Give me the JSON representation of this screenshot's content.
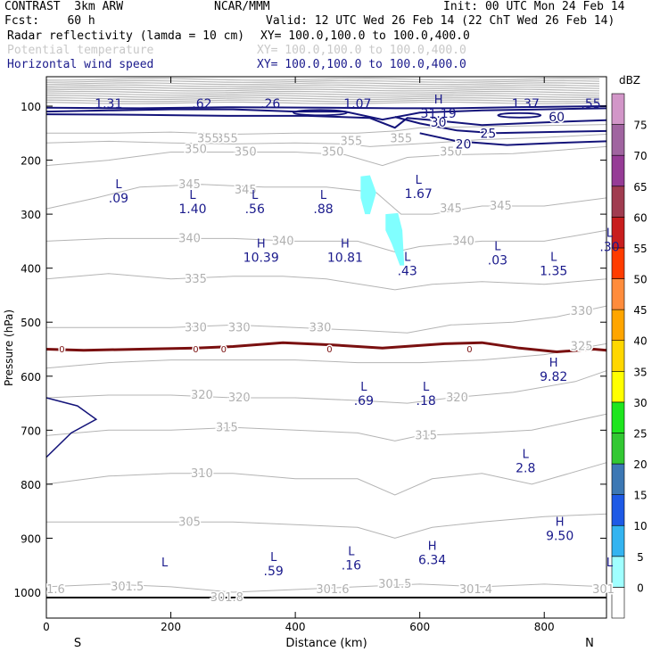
{
  "header": {
    "model": "CONTRAST  3km ARW",
    "org": "NCAR/MMM",
    "init": "Init: 00 UTC Mon 24 Feb 14",
    "fcst": "Fcst:    60 h",
    "valid": "Valid: 12 UTC Wed 26 Feb 14 (22 ChT Wed 26 Feb 14)",
    "fields": [
      {
        "name": "Radar reflectivity (lamda = 10 cm)",
        "xy": "XY= 100.0,100.0 to 100.0,400.0",
        "color": "#000000"
      },
      {
        "name": "Potential temperature",
        "xy": "XY= 100.0,100.0 to 100.0,400.0",
        "color": "#c8c8c8"
      },
      {
        "name": "Horizontal wind speed",
        "xy": "XY= 100.0,100.0 to 100.0,400.0",
        "color": "#1a1a8c"
      }
    ]
  },
  "chart_data": {
    "type": "contour",
    "xlabel": "Distance (km)",
    "ylabel": "Pressure (hPa)",
    "xlim": [
      0,
      900
    ],
    "ylim": [
      1050,
      50
    ],
    "x_ticks": [
      "0",
      "200",
      "400",
      "600",
      "800"
    ],
    "y_ticks": [
      "100",
      "200",
      "300",
      "400",
      "500",
      "600",
      "700",
      "800",
      "900",
      "1000"
    ],
    "x_end_labels": {
      "left": "S",
      "right": "N"
    },
    "colorbar": {
      "unit": "dBZ",
      "levels": [
        "0",
        "5",
        "10",
        "15",
        "20",
        "25",
        "30",
        "35",
        "40",
        "45",
        "50",
        "55",
        "60",
        "65",
        "70",
        "75"
      ],
      "colors": [
        "#ffffff",
        "#a0ffff",
        "#34b4f0",
        "#1e5ae6",
        "#3c78b4",
        "#32c832",
        "#1ee61e",
        "#ffff00",
        "#ffd700",
        "#ffa500",
        "#ff8c3c",
        "#ff3c00",
        "#c81e1e",
        "#a03c50",
        "#963c96",
        "#a064a0",
        "#d296c8"
      ]
    },
    "theta_labels": [
      {
        "x": 290,
        "p": 160,
        "text": "355"
      },
      {
        "x": 260,
        "p": 160,
        "text": "355"
      },
      {
        "x": 490,
        "p": 165,
        "text": "355"
      },
      {
        "x": 570,
        "p": 160,
        "text": "355"
      },
      {
        "x": 240,
        "p": 180,
        "text": "350"
      },
      {
        "x": 320,
        "p": 185,
        "text": "350"
      },
      {
        "x": 460,
        "p": 185,
        "text": "350"
      },
      {
        "x": 650,
        "p": 185,
        "text": "350"
      },
      {
        "x": 230,
        "p": 245,
        "text": "345"
      },
      {
        "x": 320,
        "p": 255,
        "text": "345"
      },
      {
        "x": 650,
        "p": 290,
        "text": "345"
      },
      {
        "x": 730,
        "p": 285,
        "text": "345"
      },
      {
        "x": 230,
        "p": 345,
        "text": "340"
      },
      {
        "x": 380,
        "p": 350,
        "text": "340"
      },
      {
        "x": 670,
        "p": 350,
        "text": "340"
      },
      {
        "x": 240,
        "p": 420,
        "text": "335"
      },
      {
        "x": 240,
        "p": 510,
        "text": "330"
      },
      {
        "x": 310,
        "p": 510,
        "text": "330"
      },
      {
        "x": 440,
        "p": 510,
        "text": "330"
      },
      {
        "x": 860,
        "p": 480,
        "text": "330"
      },
      {
        "x": 860,
        "p": 545,
        "text": "325"
      },
      {
        "x": 250,
        "p": 635,
        "text": "320"
      },
      {
        "x": 310,
        "p": 640,
        "text": "320"
      },
      {
        "x": 660,
        "p": 640,
        "text": "320"
      },
      {
        "x": 290,
        "p": 695,
        "text": "315"
      },
      {
        "x": 610,
        "p": 710,
        "text": "315"
      },
      {
        "x": 250,
        "p": 780,
        "text": "310"
      },
      {
        "x": 230,
        "p": 870,
        "text": "305"
      },
      {
        "x": 130,
        "p": 990,
        "text": "301.5"
      },
      {
        "x": 560,
        "p": 985,
        "text": "301.5"
      },
      {
        "x": 460,
        "p": 995,
        "text": "301.6"
      },
      {
        "x": 690,
        "p": 995,
        "text": "301.4"
      },
      {
        "x": 290,
        "p": 1010,
        "text": "301.8"
      },
      {
        "x": 895,
        "p": 995,
        "text": "301"
      },
      {
        "x": 15,
        "p": 995,
        "text": "1.6"
      }
    ],
    "wind_labels": [
      {
        "x": 630,
        "p": 130,
        "text": "30"
      },
      {
        "x": 710,
        "p": 150,
        "text": "25"
      },
      {
        "x": 670,
        "p": 170,
        "text": "20"
      },
      {
        "x": 820,
        "p": 120,
        "text": "60"
      }
    ],
    "extrema": [
      {
        "x": 100,
        "p": 90,
        "type": "",
        "value": "1.31"
      },
      {
        "x": 250,
        "p": 90,
        "type": "",
        "value": ".62"
      },
      {
        "x": 360,
        "p": 90,
        "type": "",
        "value": ".26"
      },
      {
        "x": 500,
        "p": 90,
        "type": "",
        "value": "1.07"
      },
      {
        "x": 770,
        "p": 90,
        "type": "",
        "value": "1.37"
      },
      {
        "x": 875,
        "p": 90,
        "type": "",
        "value": ".55"
      },
      {
        "x": 630,
        "p": 108,
        "type": "H",
        "value": "31.19"
      },
      {
        "x": 598,
        "p": 257,
        "type": "L",
        "value": "1.67"
      },
      {
        "x": 116,
        "p": 265,
        "type": "L",
        "value": ".09"
      },
      {
        "x": 235,
        "p": 285,
        "type": "L",
        "value": "1.40"
      },
      {
        "x": 335,
        "p": 285,
        "type": "L",
        "value": ".56"
      },
      {
        "x": 445,
        "p": 285,
        "type": "L",
        "value": ".88"
      },
      {
        "x": 960,
        "p": 355,
        "type": "L",
        "value": ".30"
      },
      {
        "x": 345,
        "p": 375,
        "type": "H",
        "value": "10.39"
      },
      {
        "x": 480,
        "p": 375,
        "type": "H",
        "value": "10.81"
      },
      {
        "x": 725,
        "p": 380,
        "type": "L",
        "value": ".03"
      },
      {
        "x": 580,
        "p": 400,
        "type": "L",
        "value": ".43"
      },
      {
        "x": 815,
        "p": 400,
        "type": "L",
        "value": "1.35"
      },
      {
        "x": 815,
        "p": 595,
        "type": "H",
        "value": "9.82"
      },
      {
        "x": 510,
        "p": 640,
        "type": "L",
        "value": ".69"
      },
      {
        "x": 610,
        "p": 640,
        "type": "L",
        "value": ".18"
      },
      {
        "x": 770,
        "p": 765,
        "type": "L",
        "value": "2.8"
      },
      {
        "x": 825,
        "p": 890,
        "type": "H",
        "value": "9.50"
      },
      {
        "x": 620,
        "p": 935,
        "type": "H",
        "value": "6.34"
      },
      {
        "x": 365,
        "p": 955,
        "type": "L",
        "value": ".59"
      },
      {
        "x": 490,
        "p": 945,
        "type": "L",
        "value": ".16"
      },
      {
        "x": 190,
        "p": 965,
        "type": "L",
        "value": ""
      },
      {
        "x": 960,
        "p": 965,
        "type": "L",
        "value": ""
      }
    ],
    "freezing_level_label": "0",
    "zero_label_x": [
      25,
      240,
      285,
      455,
      680
    ]
  }
}
